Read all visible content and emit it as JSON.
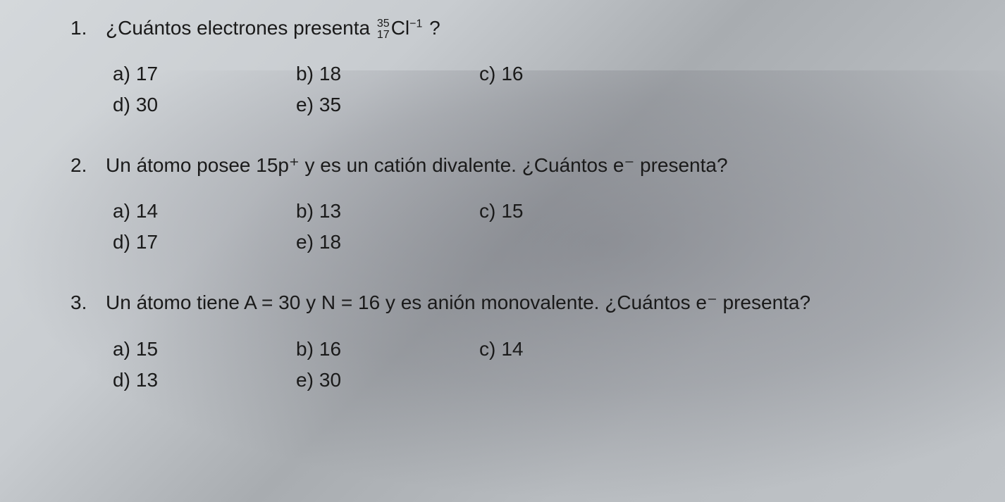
{
  "background_colors": {
    "light": "#d4d8db",
    "mid": "#c8ccd0",
    "shadow": "#a8acb0"
  },
  "text_color": "#1a1a1a",
  "font_family": "Comic Sans MS",
  "questions": [
    {
      "number": "1.",
      "prompt_before": "¿Cuántos electrones presenta ",
      "isotope": {
        "mass": "35",
        "atomic": "17",
        "element": "Cl",
        "charge": "−1"
      },
      "prompt_after": "?",
      "options": [
        {
          "label": "a)",
          "value": "17"
        },
        {
          "label": "b)",
          "value": "18"
        },
        {
          "label": "c)",
          "value": "16"
        },
        {
          "label": "d)",
          "value": "30"
        },
        {
          "label": "e)",
          "value": "35"
        }
      ]
    },
    {
      "number": "2.",
      "prompt_full": "Un átomo posee 15p⁺ y es un catión divalente. ¿Cuántos e⁻ presenta?",
      "options": [
        {
          "label": "a)",
          "value": "14"
        },
        {
          "label": "b)",
          "value": "13"
        },
        {
          "label": "c)",
          "value": "15"
        },
        {
          "label": "d)",
          "value": "17"
        },
        {
          "label": "e)",
          "value": "18"
        }
      ]
    },
    {
      "number": "3.",
      "prompt_full": "Un átomo tiene A = 30 y N = 16 y es anión monovalente. ¿Cuántos e⁻ presenta?",
      "options": [
        {
          "label": "a)",
          "value": "15"
        },
        {
          "label": "b)",
          "value": "16"
        },
        {
          "label": "c)",
          "value": "14"
        },
        {
          "label": "d)",
          "value": "13"
        },
        {
          "label": "e)",
          "value": "30"
        }
      ]
    }
  ]
}
